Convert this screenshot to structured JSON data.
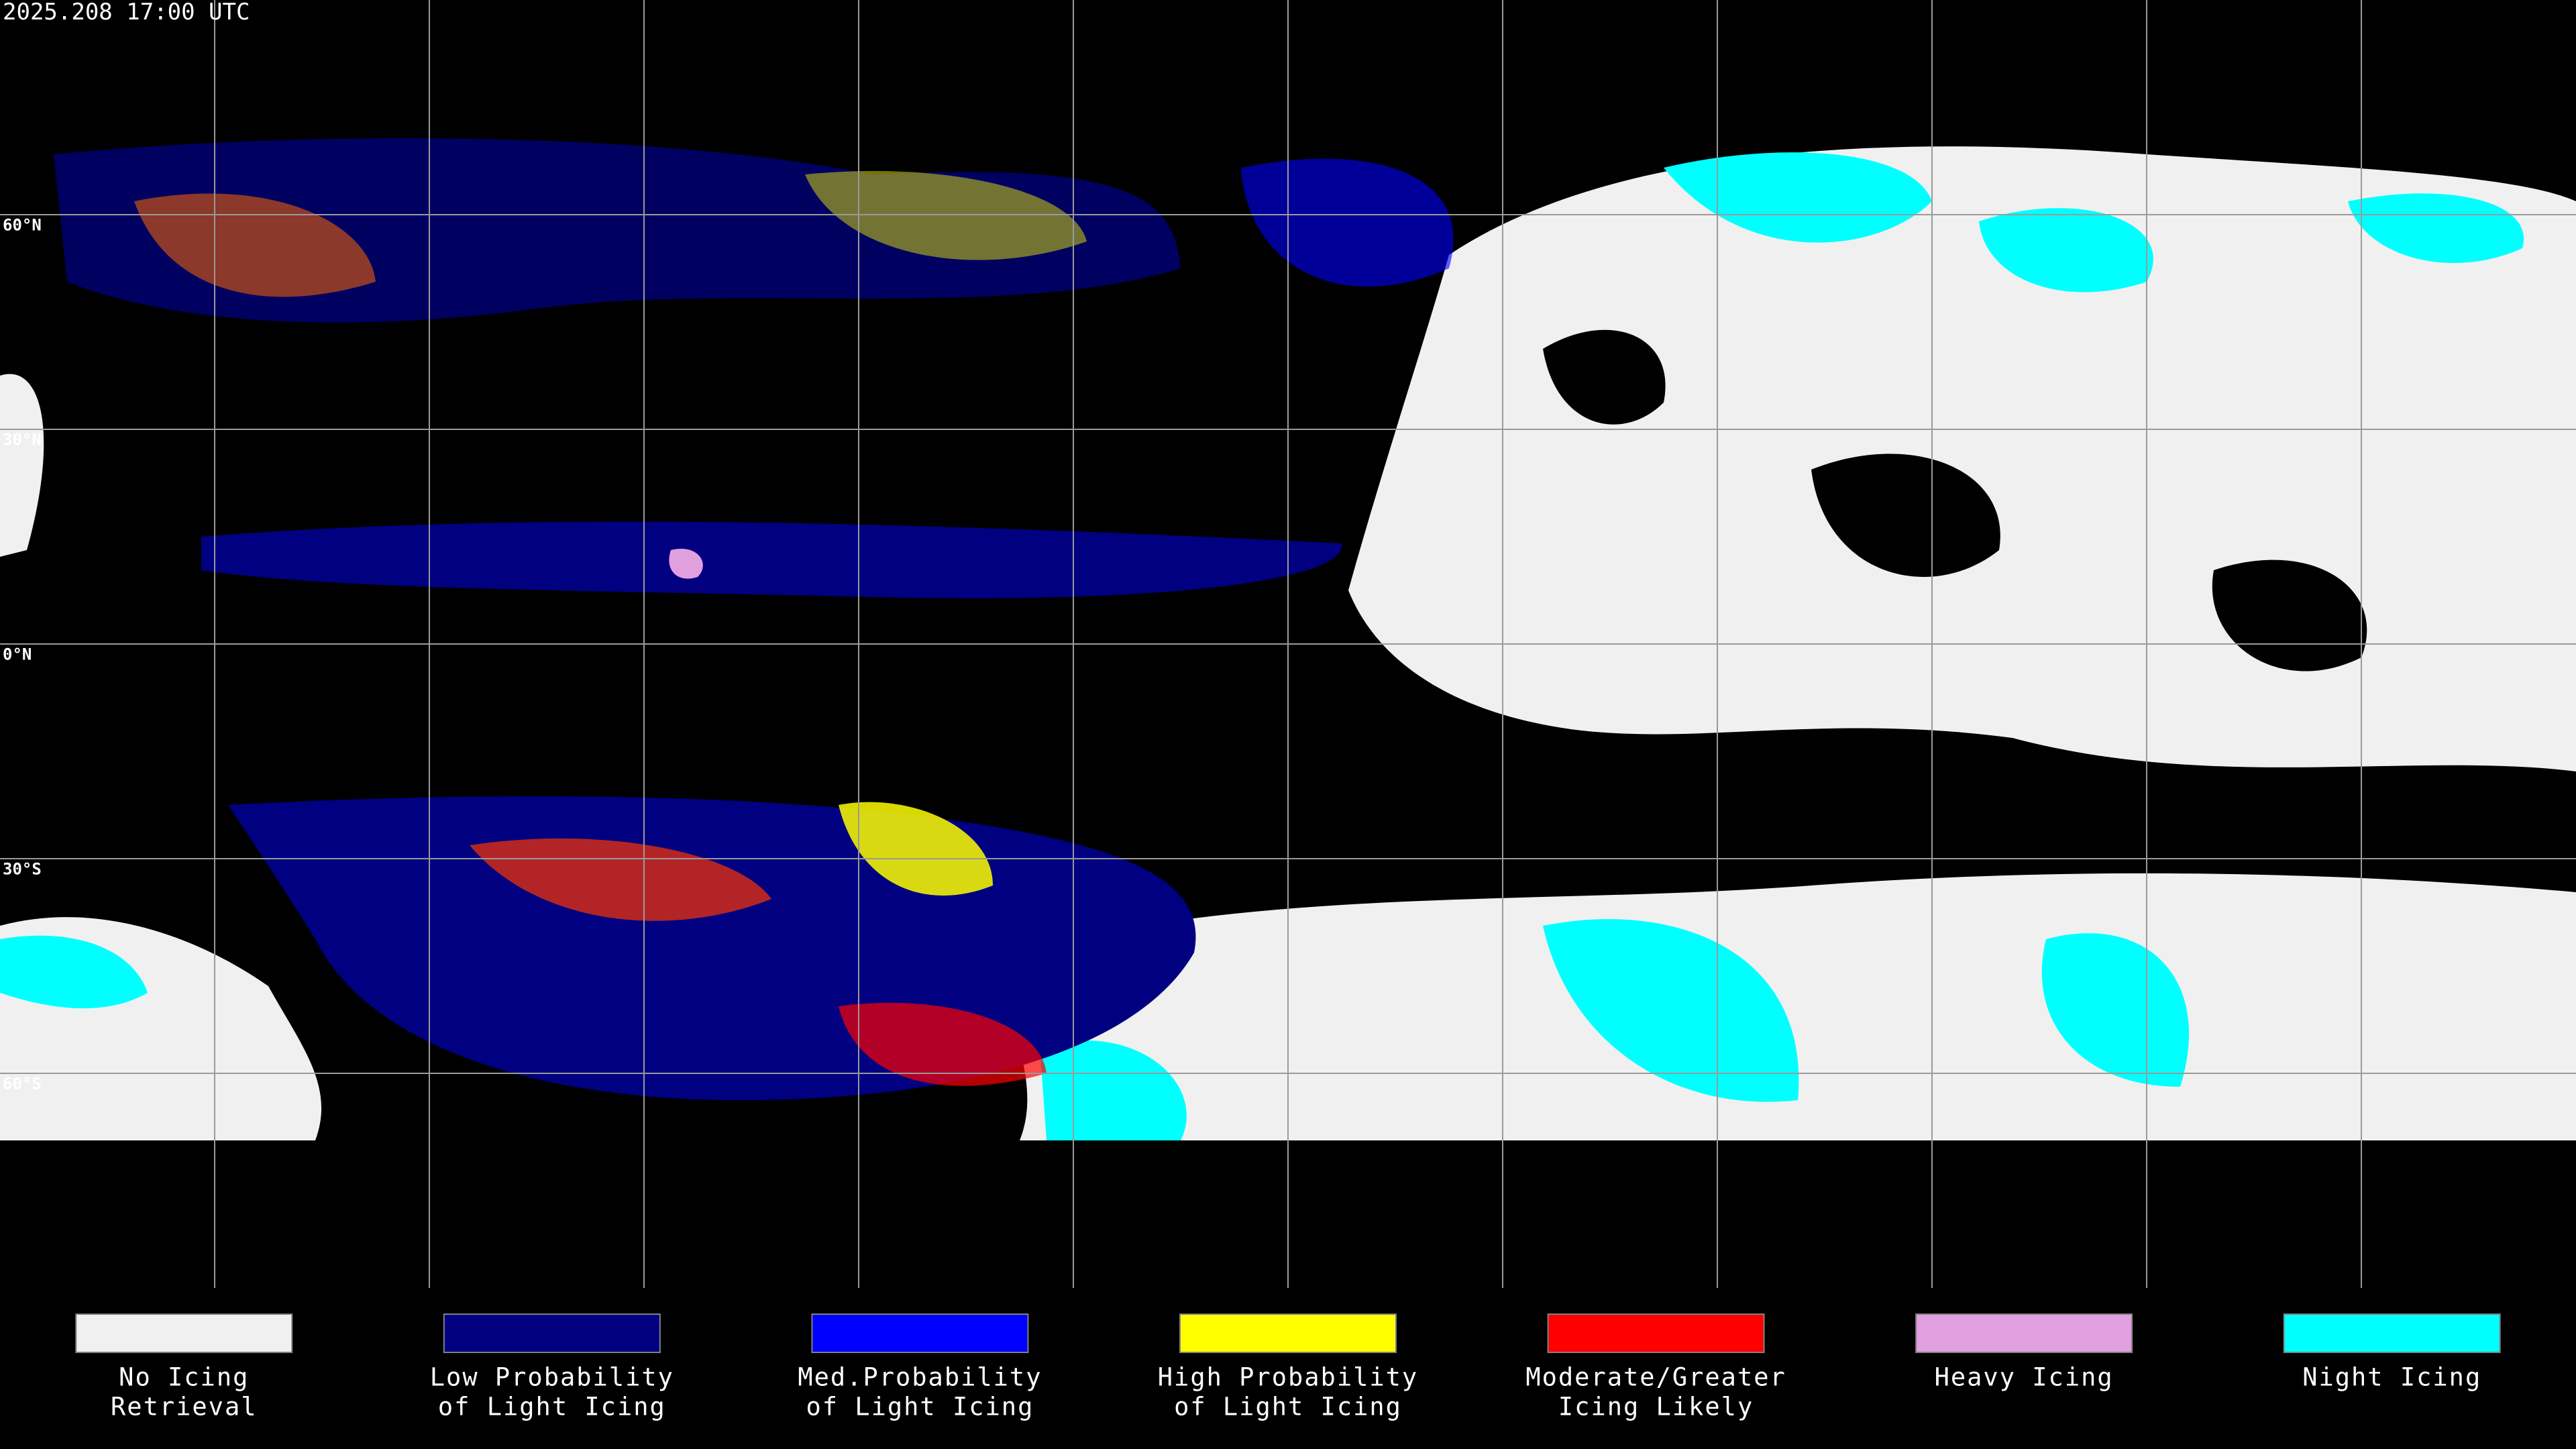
{
  "header": {
    "timestamp": "2025.208 17:00 UTC"
  },
  "latitude_labels": [
    {
      "value": 60,
      "label": "60°N"
    },
    {
      "value": 30,
      "label": "30°N"
    },
    {
      "value": 0,
      "label": "0°N"
    },
    {
      "value": -30,
      "label": "30°S"
    },
    {
      "value": -60,
      "label": "60°S"
    }
  ],
  "legend": [
    {
      "lines": [
        "No Icing",
        "Retrieval"
      ],
      "color": "#f0f0f0"
    },
    {
      "lines": [
        "Low Probability",
        "of Light Icing"
      ],
      "color": "#000080"
    },
    {
      "lines": [
        "Med.Probability",
        "of Light Icing"
      ],
      "color": "#0000ff"
    },
    {
      "lines": [
        "High Probability",
        "of Light Icing"
      ],
      "color": "#ffff00"
    },
    {
      "lines": [
        "Moderate/Greater",
        "Icing Likely"
      ],
      "color": "#ff0000"
    },
    {
      "lines": [
        "Heavy Icing"
      ],
      "color": "#e0a0e0"
    },
    {
      "lines": [
        "Night Icing"
      ],
      "color": "#00ffff"
    }
  ]
}
